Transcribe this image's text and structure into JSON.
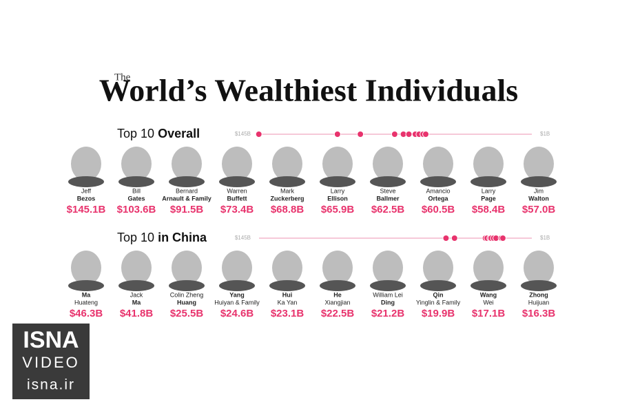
{
  "header": {
    "pre": "The",
    "title": "World’s Wealthiest Individuals"
  },
  "sections": [
    {
      "title_plain": "Top 10",
      "title_bold": "Overall",
      "xlim": [
        145,
        1
      ],
      "xticks": [
        {
          "value": 145,
          "label": "$145B"
        },
        {
          "value": 1,
          "label": "$1B"
        }
      ],
      "people": [
        {
          "line1": "Jeff",
          "line2": "Bezos",
          "bold": 2,
          "value": 145.1,
          "value_label": "$145.1B"
        },
        {
          "line1": "Bill",
          "line2": "Gates",
          "bold": 2,
          "value": 103.6,
          "value_label": "$103.6B"
        },
        {
          "line1": "Bernard",
          "line2": "Arnault & Family",
          "bold": 2,
          "value": 91.5,
          "value_label": "$91.5B"
        },
        {
          "line1": "Warren",
          "line2": "Buffett",
          "bold": 2,
          "value": 73.4,
          "value_label": "$73.4B"
        },
        {
          "line1": "Mark",
          "line2": "Zuckerberg",
          "bold": 2,
          "value": 68.8,
          "value_label": "$68.8B"
        },
        {
          "line1": "Larry",
          "line2": "Ellison",
          "bold": 2,
          "value": 65.9,
          "value_label": "$65.9B"
        },
        {
          "line1": "Steve",
          "line2": "Ballmer",
          "bold": 2,
          "value": 62.5,
          "value_label": "$62.5B"
        },
        {
          "line1": "Amancio",
          "line2": "Ortega",
          "bold": 2,
          "value": 60.5,
          "value_label": "$60.5B"
        },
        {
          "line1": "Larry",
          "line2": "Page",
          "bold": 2,
          "value": 58.4,
          "value_label": "$58.4B"
        },
        {
          "line1": "Jim",
          "line2": "Walton",
          "bold": 2,
          "value": 57.0,
          "value_label": "$57.0B"
        }
      ]
    },
    {
      "title_plain": "Top 10",
      "title_bold": "in China",
      "xlim": [
        145,
        1
      ],
      "xticks": [
        {
          "value": 145,
          "label": "$145B"
        },
        {
          "value": 1,
          "label": "$1B"
        }
      ],
      "people": [
        {
          "line1": "Ma",
          "line2": "Huateng",
          "bold": 1,
          "value": 46.3,
          "value_label": "$46.3B"
        },
        {
          "line1": "Jack",
          "line2": "Ma",
          "bold": 2,
          "value": 41.8,
          "value_label": "$41.8B"
        },
        {
          "line1": "Colin Zheng",
          "line2": "Huang",
          "bold": 2,
          "value": 25.5,
          "value_label": "$25.5B"
        },
        {
          "line1": "Yang",
          "line2": "Huiyan & Family",
          "bold": 1,
          "value": 24.6,
          "value_label": "$24.6B"
        },
        {
          "line1": "Hui",
          "line2": "Ka Yan",
          "bold": 1,
          "value": 23.1,
          "value_label": "$23.1B"
        },
        {
          "line1": "He",
          "line2": "Xiangjian",
          "bold": 1,
          "value": 22.5,
          "value_label": "$22.5B"
        },
        {
          "line1": "William Lei",
          "line2": "Ding",
          "bold": 2,
          "value": 21.2,
          "value_label": "$21.2B"
        },
        {
          "line1": "Qin",
          "line2": "Yinglin & Family",
          "bold": 1,
          "value": 19.9,
          "value_label": "$19.9B"
        },
        {
          "line1": "Wang",
          "line2": "Wei",
          "bold": 1,
          "value": 17.1,
          "value_label": "$17.1B"
        },
        {
          "line1": "Zhong",
          "line2": "Huijuan",
          "bold": 1,
          "value": 16.3,
          "value_label": "$16.3B"
        }
      ]
    }
  ],
  "watermark": {
    "line1": "ISNA",
    "line2": "VIDEO",
    "line3": "isna.ir"
  }
}
